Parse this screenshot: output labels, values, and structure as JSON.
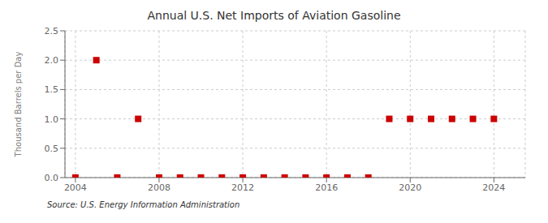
{
  "chart_data": {
    "type": "scatter",
    "title": "Annual U.S. Net Imports of Aviation Gasoline",
    "y_label": "Thousand Barrels per Day",
    "annotations": [
      "Source: U.S. Energy Information Administration"
    ],
    "x": [
      2004,
      2005,
      2006,
      2007,
      2008,
      2009,
      2010,
      2011,
      2012,
      2013,
      2014,
      2015,
      2016,
      2017,
      2018,
      2019,
      2020,
      2021,
      2022,
      2023,
      2024
    ],
    "values": [
      0.0,
      2.0,
      0.0,
      1.0,
      0.0,
      0.0,
      0.0,
      0.0,
      0.0,
      0.0,
      0.0,
      0.0,
      0.0,
      0.0,
      0.0,
      1.0,
      1.0,
      1.0,
      1.0,
      1.0,
      1.0
    ],
    "color": "#cc0000",
    "marker": "square",
    "xlim": [
      2003.5,
      2025.5
    ],
    "ylim": [
      0.0,
      2.5
    ],
    "xticks": [
      2004,
      2008,
      2012,
      2016,
      2020,
      2024
    ],
    "yticks": [
      {
        "value": 0,
        "label": "0.0"
      },
      0.5,
      {
        "value": 1,
        "label": "1.0"
      },
      1.5,
      {
        "value": 2,
        "label": "2.0"
      },
      2.5
    ],
    "grid": true
  }
}
